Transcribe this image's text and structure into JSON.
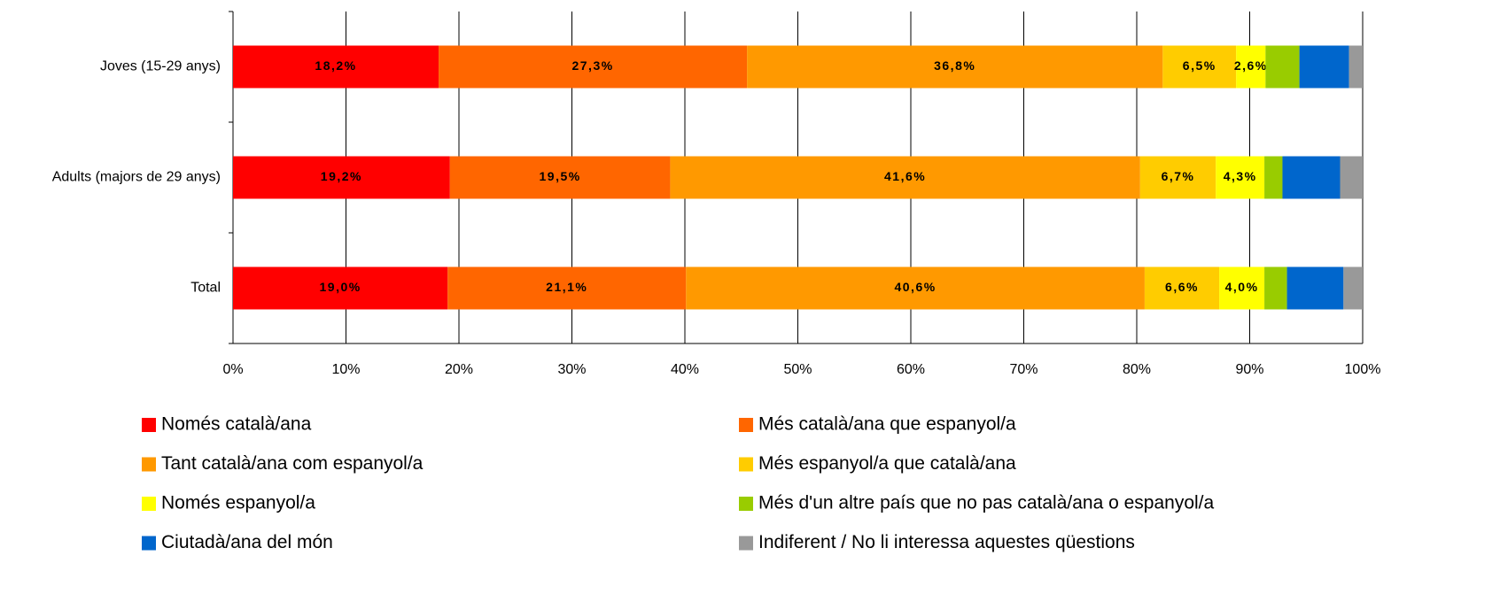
{
  "chart_data": {
    "type": "stacked-bar-horizontal",
    "categories": [
      "Joves (15-29 anys)",
      "Adults (majors de 29 anys)",
      "Total"
    ],
    "series": [
      {
        "name": "Només català/ana",
        "color": "#ff0000",
        "values": [
          18.2,
          19.2,
          19.0
        ],
        "value_labels": [
          "18,2%",
          "19,2%",
          "19,0%"
        ]
      },
      {
        "name": "Més català/ana que espanyol/a",
        "color": "#ff6600",
        "values": [
          27.3,
          19.5,
          21.1
        ],
        "value_labels": [
          "27,3%",
          "19,5%",
          "21,1%"
        ]
      },
      {
        "name": "Tant català/ana com espanyol/a",
        "color": "#ff9900",
        "values": [
          36.8,
          41.6,
          40.6
        ],
        "value_labels": [
          "36,8%",
          "41,6%",
          "40,6%"
        ]
      },
      {
        "name": "Més espanyol/a que català/ana",
        "color": "#ffcc00",
        "values": [
          6.5,
          6.7,
          6.6
        ],
        "value_labels": [
          "6,5%",
          "6,7%",
          "6,6%"
        ]
      },
      {
        "name": "Només espanyol/a",
        "color": "#ffff00",
        "values": [
          2.6,
          4.3,
          4.0
        ],
        "value_labels": [
          "2,6%",
          "4,3%",
          "4,0%"
        ]
      },
      {
        "name": "Més d'un altre país que no pas català/ana o espanyol/a",
        "color": "#99cc00",
        "values": [
          3.0,
          1.6,
          2.0
        ]
      },
      {
        "name": "Ciutadà/ana del món",
        "color": "#0066cc",
        "values": [
          4.4,
          5.1,
          5.0
        ]
      },
      {
        "name": "Indiferent / No li interessa aquestes qüestions",
        "color": "#999999",
        "values": [
          1.2,
          2.0,
          1.7
        ]
      }
    ],
    "xlim": [
      0,
      100
    ],
    "xticks": [
      {
        "value": 0,
        "label": "0%"
      },
      {
        "value": 10,
        "label": "10%"
      },
      {
        "value": 20,
        "label": "20%"
      },
      {
        "value": 30,
        "label": "30%"
      },
      {
        "value": 40,
        "label": "40%"
      },
      {
        "value": 50,
        "label": "50%"
      },
      {
        "value": 60,
        "label": "60%"
      },
      {
        "value": 70,
        "label": "70%"
      },
      {
        "value": 80,
        "label": "80%"
      },
      {
        "value": 90,
        "label": "90%"
      },
      {
        "value": 100,
        "label": "100%"
      }
    ],
    "grid": true,
    "legend": "bottom"
  }
}
